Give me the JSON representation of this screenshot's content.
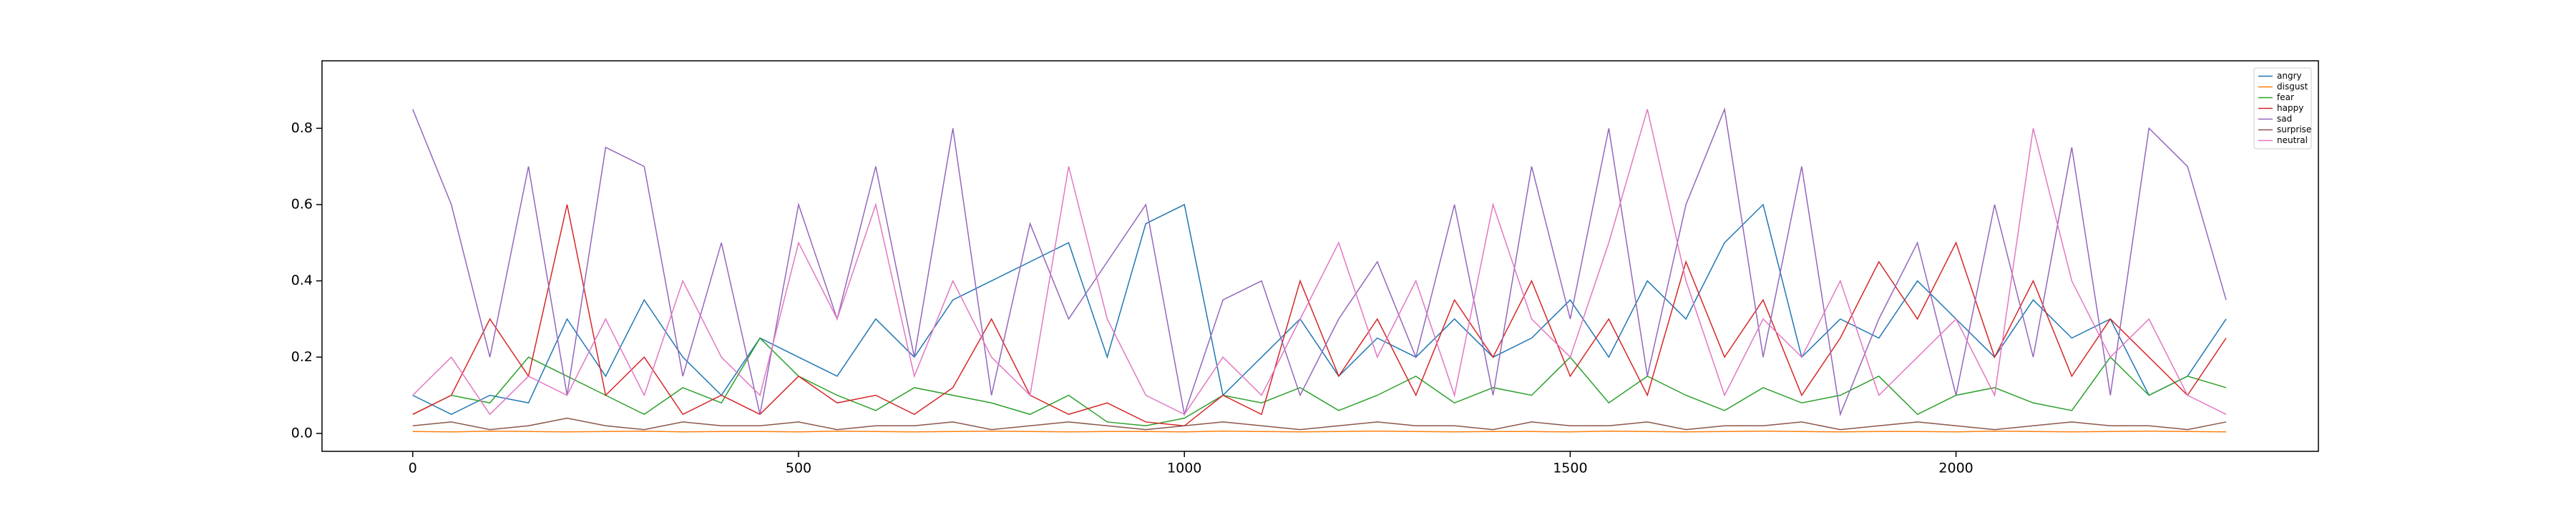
{
  "chart_data": {
    "type": "line",
    "x": [
      0,
      50,
      100,
      150,
      200,
      250,
      300,
      350,
      400,
      450,
      500,
      550,
      600,
      650,
      700,
      750,
      800,
      850,
      900,
      950,
      1000,
      1050,
      1100,
      1150,
      1200,
      1250,
      1300,
      1350,
      1400,
      1450,
      1500,
      1550,
      1600,
      1650,
      1700,
      1750,
      1800,
      1850,
      1900,
      1950,
      2000,
      2050,
      2100,
      2150,
      2200,
      2250,
      2300,
      2350
    ],
    "series": [
      {
        "name": "angry",
        "color": "#1f77b4",
        "values": [
          0.1,
          0.05,
          0.1,
          0.08,
          0.3,
          0.15,
          0.35,
          0.2,
          0.1,
          0.25,
          0.2,
          0.15,
          0.3,
          0.2,
          0.35,
          0.4,
          0.45,
          0.5,
          0.2,
          0.55,
          0.6,
          0.1,
          0.2,
          0.3,
          0.15,
          0.25,
          0.2,
          0.3,
          0.2,
          0.25,
          0.35,
          0.2,
          0.4,
          0.3,
          0.5,
          0.6,
          0.2,
          0.3,
          0.25,
          0.4,
          0.3,
          0.2,
          0.35,
          0.25,
          0.3,
          0.1,
          0.15,
          0.3
        ]
      },
      {
        "name": "disgust",
        "color": "#ff7f0e",
        "values": [
          0.005,
          0.004,
          0.006,
          0.005,
          0.004,
          0.005,
          0.006,
          0.004,
          0.005,
          0.005,
          0.004,
          0.006,
          0.005,
          0.004,
          0.005,
          0.006,
          0.005,
          0.004,
          0.005,
          0.005,
          0.004,
          0.006,
          0.005,
          0.004,
          0.005,
          0.006,
          0.005,
          0.004,
          0.005,
          0.005,
          0.004,
          0.006,
          0.005,
          0.004,
          0.005,
          0.006,
          0.005,
          0.004,
          0.005,
          0.005,
          0.004,
          0.006,
          0.005,
          0.004,
          0.005,
          0.006,
          0.005,
          0.004
        ]
      },
      {
        "name": "fear",
        "color": "#2ca02c",
        "values": [
          0.05,
          0.1,
          0.08,
          0.2,
          0.15,
          0.1,
          0.05,
          0.12,
          0.08,
          0.25,
          0.15,
          0.1,
          0.06,
          0.12,
          0.1,
          0.08,
          0.05,
          0.1,
          0.03,
          0.02,
          0.04,
          0.1,
          0.08,
          0.12,
          0.06,
          0.1,
          0.15,
          0.08,
          0.12,
          0.1,
          0.2,
          0.08,
          0.15,
          0.1,
          0.06,
          0.12,
          0.08,
          0.1,
          0.15,
          0.05,
          0.1,
          0.12,
          0.08,
          0.06,
          0.2,
          0.1,
          0.15,
          0.12
        ]
      },
      {
        "name": "happy",
        "color": "#d62728",
        "values": [
          0.05,
          0.1,
          0.3,
          0.15,
          0.6,
          0.1,
          0.2,
          0.05,
          0.1,
          0.05,
          0.15,
          0.08,
          0.1,
          0.05,
          0.12,
          0.3,
          0.1,
          0.05,
          0.08,
          0.03,
          0.02,
          0.1,
          0.05,
          0.4,
          0.15,
          0.3,
          0.1,
          0.35,
          0.2,
          0.4,
          0.15,
          0.3,
          0.1,
          0.45,
          0.2,
          0.35,
          0.1,
          0.25,
          0.45,
          0.3,
          0.5,
          0.2,
          0.4,
          0.15,
          0.3,
          0.2,
          0.1,
          0.25
        ]
      },
      {
        "name": "sad",
        "color": "#9467bd",
        "values": [
          0.85,
          0.6,
          0.2,
          0.7,
          0.1,
          0.75,
          0.7,
          0.15,
          0.5,
          0.05,
          0.6,
          0.3,
          0.7,
          0.2,
          0.8,
          0.1,
          0.55,
          0.3,
          0.45,
          0.6,
          0.05,
          0.35,
          0.4,
          0.1,
          0.3,
          0.45,
          0.2,
          0.6,
          0.1,
          0.7,
          0.3,
          0.8,
          0.15,
          0.6,
          0.85,
          0.2,
          0.7,
          0.05,
          0.3,
          0.5,
          0.1,
          0.6,
          0.2,
          0.75,
          0.1,
          0.8,
          0.7,
          0.35
        ]
      },
      {
        "name": "surprise",
        "color": "#8c564b",
        "values": [
          0.02,
          0.03,
          0.01,
          0.02,
          0.04,
          0.02,
          0.01,
          0.03,
          0.02,
          0.02,
          0.03,
          0.01,
          0.02,
          0.02,
          0.03,
          0.01,
          0.02,
          0.03,
          0.02,
          0.01,
          0.02,
          0.03,
          0.02,
          0.01,
          0.02,
          0.03,
          0.02,
          0.02,
          0.01,
          0.03,
          0.02,
          0.02,
          0.03,
          0.01,
          0.02,
          0.02,
          0.03,
          0.01,
          0.02,
          0.03,
          0.02,
          0.01,
          0.02,
          0.03,
          0.02,
          0.02,
          0.01,
          0.03
        ]
      },
      {
        "name": "neutral",
        "color": "#e377c2",
        "values": [
          0.1,
          0.2,
          0.05,
          0.15,
          0.1,
          0.3,
          0.1,
          0.4,
          0.2,
          0.1,
          0.5,
          0.3,
          0.6,
          0.15,
          0.4,
          0.2,
          0.1,
          0.7,
          0.3,
          0.1,
          0.05,
          0.2,
          0.1,
          0.3,
          0.5,
          0.2,
          0.4,
          0.1,
          0.6,
          0.3,
          0.2,
          0.5,
          0.85,
          0.4,
          0.1,
          0.3,
          0.2,
          0.4,
          0.1,
          0.2,
          0.3,
          0.1,
          0.8,
          0.4,
          0.2,
          0.3,
          0.1,
          0.05
        ]
      }
    ],
    "xlim": [
      -117.6,
      2469.6
    ],
    "ylim": [
      -0.047,
      0.977
    ],
    "xticks": [
      0,
      500,
      1000,
      1500,
      2000
    ],
    "yticks": [
      {
        "value": 0,
        "label": "0.0"
      },
      0.2,
      0.4,
      0.6,
      0.8
    ],
    "legend": "upper right"
  }
}
